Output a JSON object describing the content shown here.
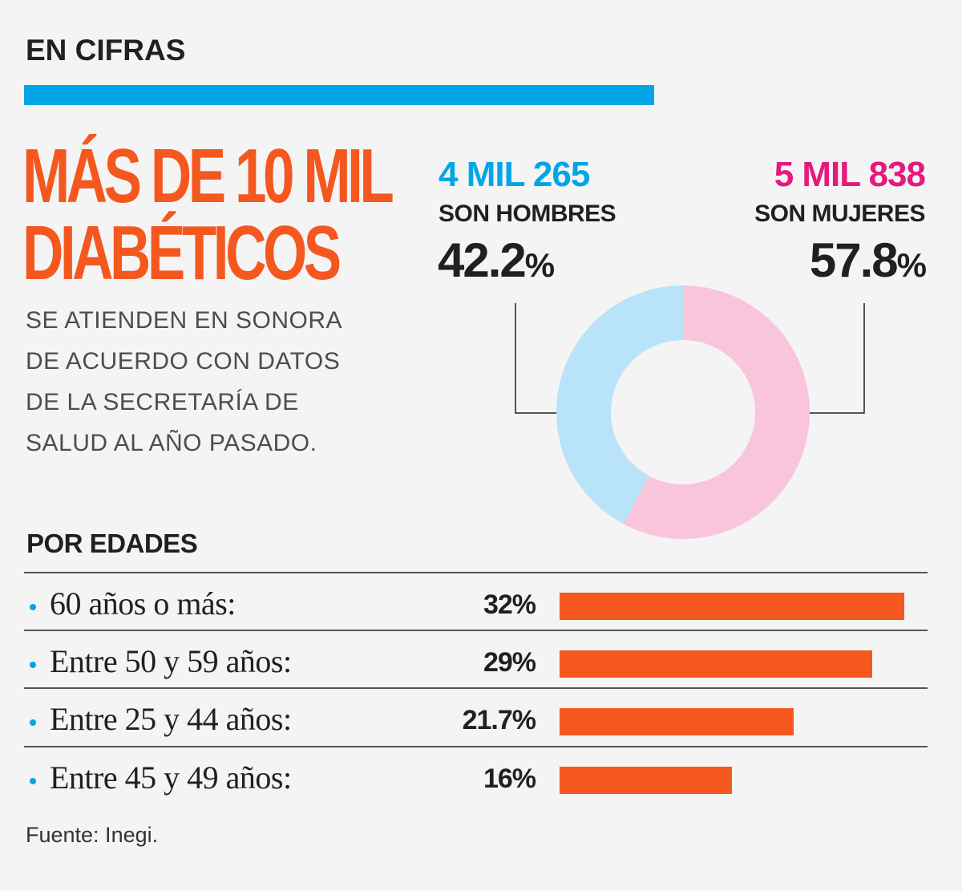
{
  "header": {
    "section_label": "EN CIFRAS",
    "accent_color": "#00a6e6"
  },
  "headline": {
    "line1": "MÁS DE 10 MIL",
    "line2": "DIABÉTICOS",
    "color": "#f4581f"
  },
  "subtext": {
    "line1": "SE ATIENDEN EN SONORA",
    "line2": "DE ACUERDO CON DATOS",
    "line3": "DE LA SECRETARÍA DE",
    "line4": "SALUD AL AÑO PASADO."
  },
  "gender": {
    "men": {
      "count": "4 MIL 265",
      "label": "SON HOMBRES",
      "pct": "42.2",
      "pct_sign": "%",
      "color": "#00a6e6"
    },
    "women": {
      "count": "5 MIL 838",
      "label": "SON MUJERES",
      "pct": "57.8",
      "pct_sign": "%",
      "color": "#e6197e"
    }
  },
  "ages": {
    "title": "POR EDADES",
    "bar_color": "#f4581f",
    "bullet_color": "#00a6e6"
  },
  "source": "Fuente: Inegi.",
  "chart_data": [
    {
      "type": "pie",
      "donut": true,
      "labels": [
        "SON HOMBRES",
        "SON MUJERES"
      ],
      "values": [
        42.2,
        57.8
      ],
      "colors": [
        "#b8e3f8",
        "#f8c5dd"
      ]
    },
    {
      "type": "bar",
      "orientation": "horizontal",
      "title": "POR EDADES",
      "categories": [
        "60 años o más:",
        "Entre 50 y 59 años:",
        "Entre 25 y 44 años:",
        "Entre 45 y 49 años:"
      ],
      "values": [
        32,
        29,
        21.7,
        16
      ],
      "value_labels": [
        "32%",
        "29%",
        "21.7%",
        "16%"
      ],
      "xlim": [
        0,
        32
      ]
    }
  ]
}
